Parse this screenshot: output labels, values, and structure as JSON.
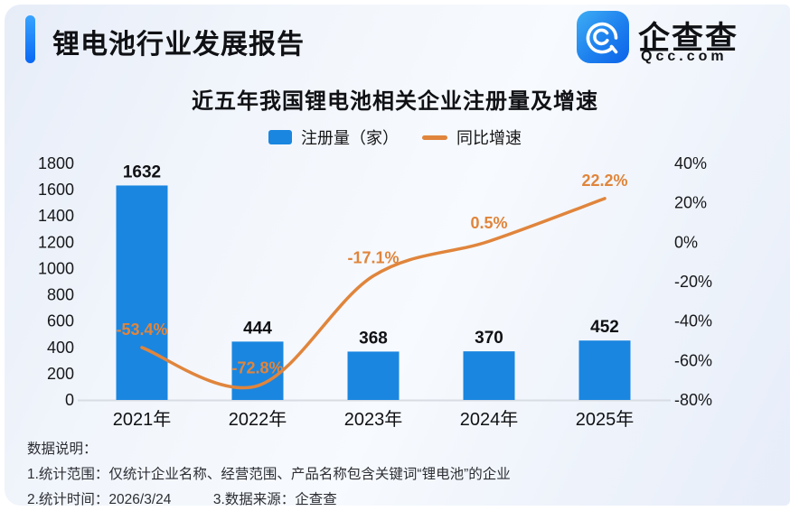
{
  "header": {
    "title": "锂电池行业发展报告"
  },
  "logo": {
    "name": "企查查",
    "domain": "Qcc.com",
    "icon": "qcc-magnifier-icon"
  },
  "chart": {
    "title": "近五年我国锂电池相关企业注册量及增速",
    "legend": {
      "bars": "注册量（家）",
      "line": "同比增速"
    }
  },
  "chart_data": {
    "type": "bar",
    "categories": [
      "2021年",
      "2022年",
      "2023年",
      "2024年",
      "2025年"
    ],
    "series": [
      {
        "name": "注册量（家）",
        "type": "bar",
        "axis": "left",
        "values": [
          1632,
          444,
          368,
          370,
          452
        ],
        "labels": [
          "1632",
          "444",
          "368",
          "370",
          "452"
        ]
      },
      {
        "name": "同比增速",
        "type": "line",
        "axis": "right",
        "values": [
          -53.4,
          -72.8,
          -17.1,
          0.5,
          22.2
        ],
        "labels": [
          "-53.4%",
          "-72.8%",
          "-17.1%",
          "0.5%",
          "22.2%"
        ]
      }
    ],
    "left_axis": {
      "min": 0,
      "max": 1800,
      "step": 200,
      "ticks": [
        "1800",
        "1600",
        "1400",
        "1200",
        "1000",
        "800",
        "600",
        "400",
        "200",
        "0"
      ]
    },
    "right_axis": {
      "min": -80,
      "max": 40,
      "step": 20,
      "ticks": [
        "40%",
        "20%",
        "0%",
        "-20%",
        "-40%",
        "-60%",
        "-80%"
      ]
    },
    "grid": false,
    "legend_position": "top",
    "title": "近五年我国锂电池相关企业注册量及增速"
  },
  "footer": {
    "heading": "数据说明：",
    "notes": [
      "1.统计范围：仅统计企业名称、经营范围、产品名称包含关键词“锂电池”的企业",
      "2.统计时间：2026/3/24　　　3.数据来源：企查查"
    ]
  },
  "colors": {
    "bar_blue": "#1a86e0",
    "line_orange": "#e0853c",
    "accent_blue": "#1274f4",
    "axis_line": "#d8dce3",
    "text_dark": "#101114"
  }
}
